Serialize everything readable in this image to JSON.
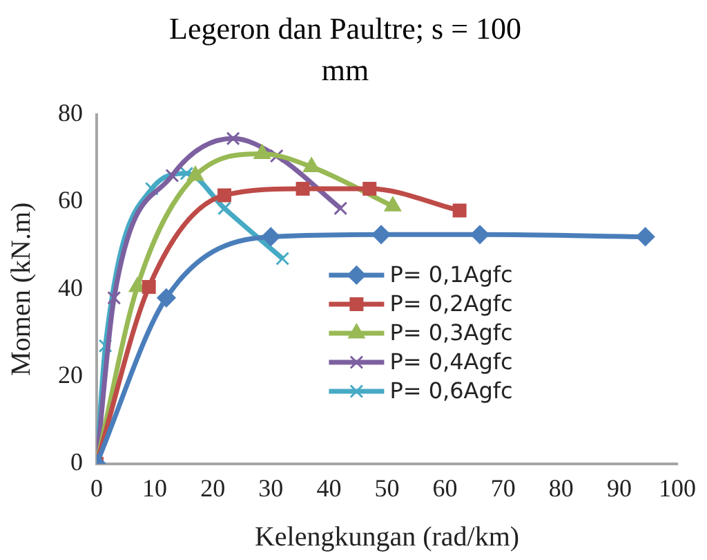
{
  "chart_data": {
    "type": "line",
    "title": "Legeron dan Paultre; s = 100 mm",
    "xlabel": "Kelengkungan (rad/km)",
    "ylabel": "Momen (kN.m)",
    "xlim": [
      0,
      100
    ],
    "xticks": [
      0,
      10,
      20,
      30,
      40,
      50,
      60,
      70,
      80,
      90,
      100
    ],
    "ylim": [
      0,
      80
    ],
    "yticks": [
      0,
      20,
      40,
      60,
      80
    ],
    "grid": false,
    "legend": "right",
    "line_style": "solid",
    "series": [
      {
        "name": "P= 0,1Agfc",
        "color": "#4a7ebb",
        "marker": "diamond",
        "x": [
          0,
          12,
          30,
          49,
          66,
          94.5
        ],
        "values": [
          0,
          38,
          52,
          52.5,
          52.5,
          52
        ]
      },
      {
        "name": "P= 0,2Agfc",
        "color": "#be4b48",
        "marker": "square",
        "x": [
          0,
          9,
          22,
          35.5,
          47,
          62.5
        ],
        "values": [
          0,
          40.5,
          61.5,
          63,
          63,
          58
        ]
      },
      {
        "name": "P= 0,3Agfc",
        "color": "#98b954",
        "marker": "triangle",
        "x": [
          0,
          7,
          17,
          28.5,
          37,
          51
        ],
        "values": [
          0,
          40.5,
          66,
          71,
          68,
          59
        ]
      },
      {
        "name": "P= 0,4Agfc",
        "color": "#7d60a0",
        "marker": "cross",
        "x": [
          0,
          3,
          13,
          23.5,
          31,
          42
        ],
        "values": [
          0,
          38,
          66,
          74.5,
          70.5,
          58.5
        ]
      },
      {
        "name": "P= 0,6Agfc",
        "color": "#46aac5",
        "marker": "cross",
        "x": [
          0,
          1.5,
          9.5,
          15.5,
          22,
          32
        ],
        "values": [
          0,
          27,
          63,
          66.5,
          58.5,
          47
        ]
      }
    ]
  }
}
